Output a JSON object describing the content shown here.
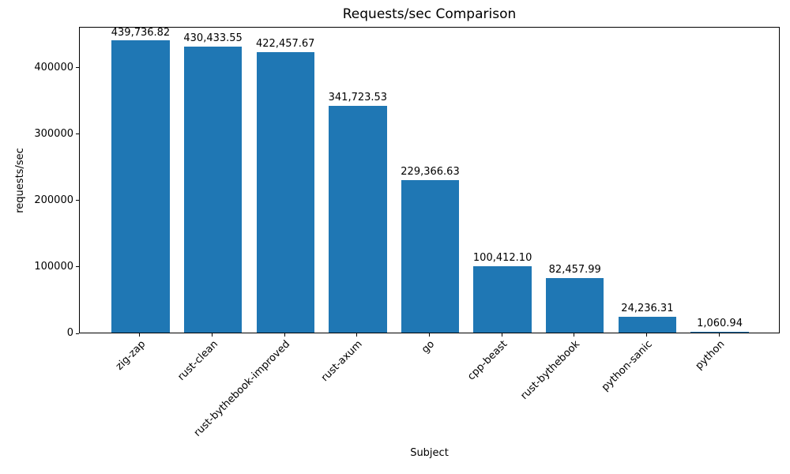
{
  "chart_data": {
    "type": "bar",
    "title": "Requests/sec Comparison",
    "xlabel": "Subject",
    "ylabel": "requests/sec",
    "categories": [
      "zig-zap",
      "rust-clean",
      "rust-bythebook-improved",
      "rust-axum",
      "go",
      "cpp-beast",
      "rust-bythebook",
      "python-sanic",
      "python"
    ],
    "values": [
      439736.82,
      430433.55,
      422457.67,
      341723.53,
      229366.63,
      100412.1,
      82457.99,
      24236.31,
      1060.94
    ],
    "value_labels": [
      "439,736.82",
      "430,433.55",
      "422,457.67",
      "341,723.53",
      "229,366.63",
      "100,412.10",
      "82,457.99",
      "24,236.31",
      "1,060.94"
    ],
    "y_ticks": {
      "values": [
        0,
        100000,
        200000,
        300000,
        400000
      ],
      "labels": [
        "0",
        "100000",
        "200000",
        "300000",
        "400000"
      ]
    },
    "ylim": [
      0,
      461723.66
    ],
    "bar_color": "#1f77b4",
    "grid": false,
    "legend": "none",
    "x_tick_rotation_deg": 45
  }
}
